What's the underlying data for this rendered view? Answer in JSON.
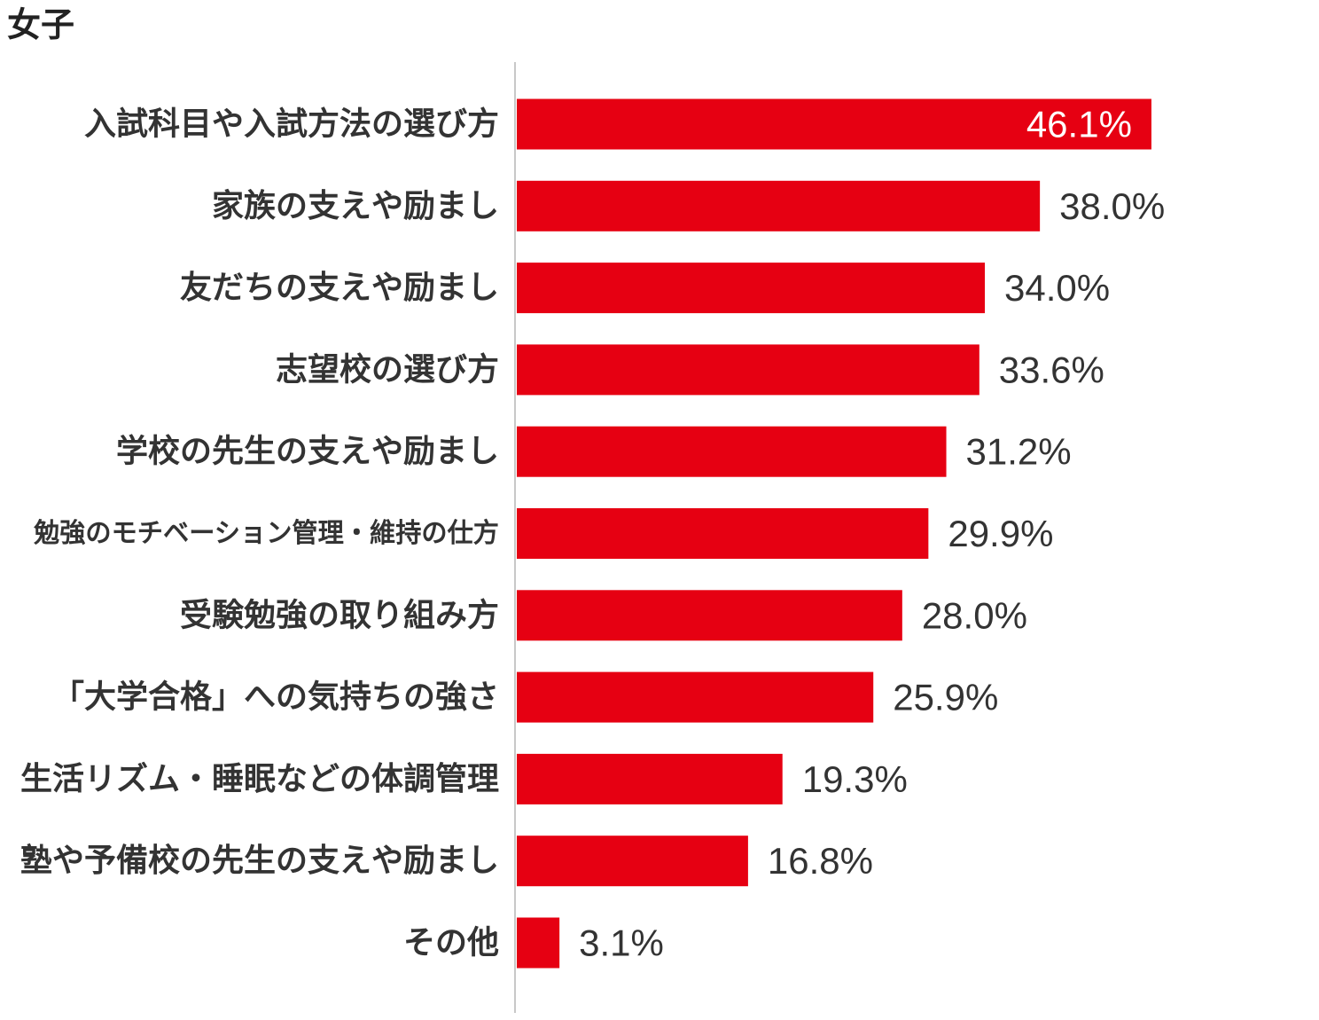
{
  "chart_data": {
    "type": "bar",
    "orientation": "horizontal",
    "title": "女子",
    "categories": [
      "入試科目や入試方法の選び方",
      "家族の支えや励まし",
      "友だちの支えや励まし",
      "志望校の選び方",
      "学校の先生の支えや励まし",
      "勉強のモチベーション管理・維持の仕方",
      "受験勉強の取り組み方",
      "「大学合格」への気持ちの強さ",
      "生活リズム・睡眠などの体調管理",
      "塾や予備校の先生の支えや励まし",
      "その他"
    ],
    "values": [
      46.1,
      38.0,
      34.0,
      33.6,
      31.2,
      29.9,
      28.0,
      25.9,
      19.3,
      16.8,
      3.1
    ],
    "value_labels": [
      "46.1%",
      "38.0%",
      "34.0%",
      "33.6%",
      "31.2%",
      "29.9%",
      "28.0%",
      "25.9%",
      "19.3%",
      "16.8%",
      "3.1%"
    ],
    "xlim": [
      0,
      50
    ],
    "grid": false,
    "legend": "none",
    "colors": {
      "bar": "#e60012",
      "axis": "#c8c8c8",
      "text": "#333333",
      "label_inside": "#ffffff"
    }
  }
}
